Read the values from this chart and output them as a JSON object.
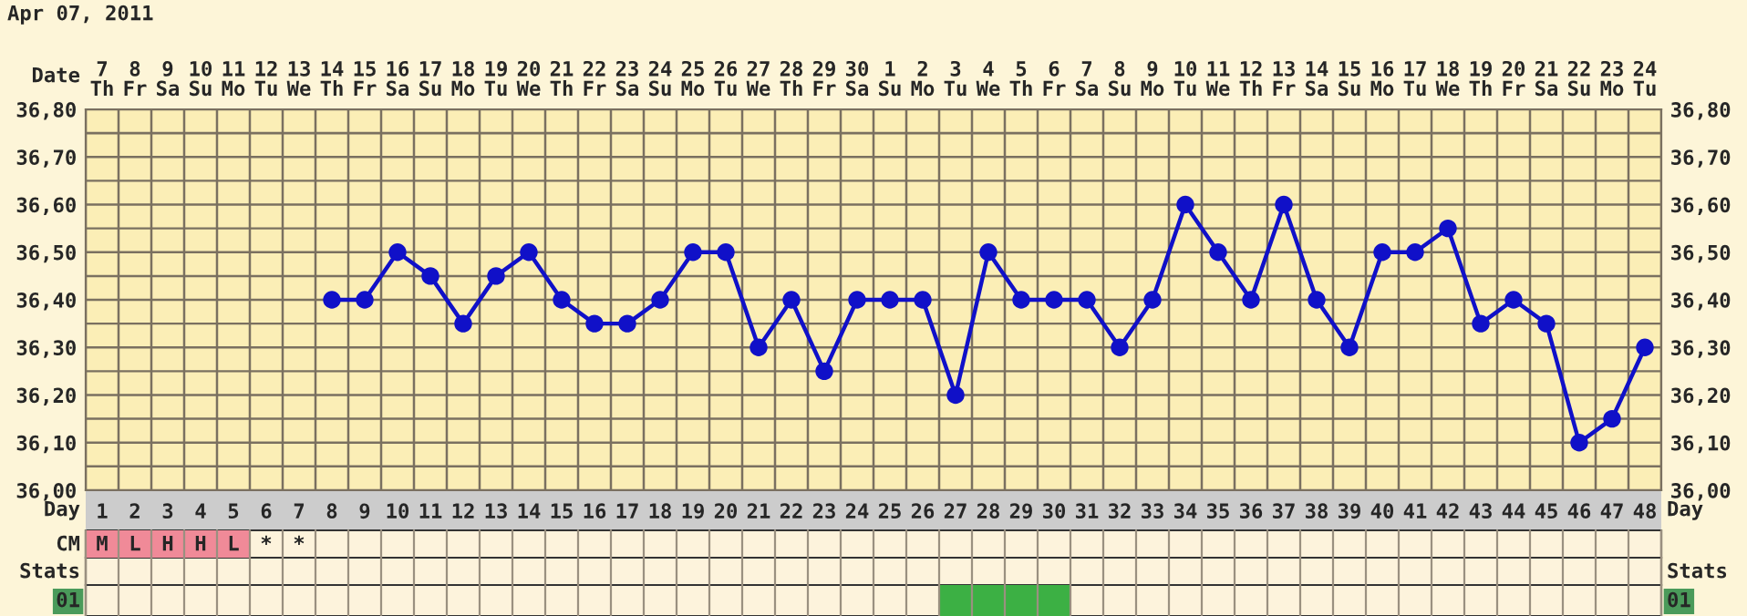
{
  "chart_data": {
    "type": "line",
    "title": "Apr 07, 2011",
    "xlabel": "Day",
    "categories": [
      "1",
      "2",
      "3",
      "4",
      "5",
      "6",
      "7",
      "8",
      "9",
      "10",
      "11",
      "12",
      "13",
      "14",
      "15",
      "16",
      "17",
      "18",
      "19",
      "20",
      "21",
      "22",
      "23",
      "24",
      "25",
      "26",
      "27",
      "28",
      "29",
      "30",
      "31",
      "32",
      "33",
      "34",
      "35",
      "36",
      "37",
      "38",
      "39",
      "40",
      "41",
      "42",
      "43",
      "44",
      "45",
      "46",
      "47",
      "48"
    ],
    "series": [
      {
        "color": "#1010c8",
        "values": [
          null,
          null,
          null,
          null,
          null,
          null,
          null,
          36.4,
          36.4,
          36.5,
          36.45,
          36.35,
          36.45,
          36.5,
          36.4,
          36.35,
          36.35,
          36.4,
          36.5,
          36.5,
          36.3,
          36.4,
          36.25,
          36.4,
          36.4,
          36.4,
          36.2,
          36.5,
          36.4,
          36.4,
          36.4,
          36.3,
          36.4,
          36.6,
          36.5,
          36.4,
          36.6,
          36.4,
          36.3,
          36.5,
          36.5,
          36.55,
          36.35,
          36.4,
          36.35,
          36.1,
          36.15,
          36.3
        ]
      }
    ],
    "ylim": [
      36.0,
      36.8
    ],
    "yticks": [
      {
        "value": 36.0,
        "label": "36,00"
      },
      {
        "value": 36.05,
        "label": null
      },
      {
        "value": 36.1,
        "label": "36,10"
      },
      {
        "value": 36.15,
        "label": null
      },
      {
        "value": 36.2,
        "label": "36,20"
      },
      {
        "value": 36.25,
        "label": null
      },
      {
        "value": 36.3,
        "label": "36,30"
      },
      {
        "value": 36.35,
        "label": null
      },
      {
        "value": 36.4,
        "label": "36,40"
      },
      {
        "value": 36.45,
        "label": null
      },
      {
        "value": 36.5,
        "label": "36,50"
      },
      {
        "value": 36.55,
        "label": null
      },
      {
        "value": 36.6,
        "label": "36,60"
      },
      {
        "value": 36.65,
        "label": null
      },
      {
        "value": 36.7,
        "label": "36,70"
      },
      {
        "value": 36.75,
        "label": null
      },
      {
        "value": 36.8,
        "label": "36,80"
      }
    ],
    "y2lim": [
      36.0,
      36.8
    ],
    "y2ticks": [
      {
        "value": 36.0,
        "label": "36,00"
      },
      {
        "value": 36.1,
        "label": "36,10"
      },
      {
        "value": 36.2,
        "label": "36,20"
      },
      {
        "value": 36.3,
        "label": "36,30"
      },
      {
        "value": 36.4,
        "label": "36,40"
      },
      {
        "value": 36.5,
        "label": "36,50"
      },
      {
        "value": 36.6,
        "label": "36,60"
      },
      {
        "value": 36.7,
        "label": "36,70"
      },
      {
        "value": 36.8,
        "label": "36,80"
      }
    ],
    "grid": true,
    "marker": "circle",
    "line_style": "solid",
    "annotations": [
      "Date",
      "7\nTh",
      "8\nFr",
      "9\nSa",
      "10\nSu",
      "11\nMo",
      "12\nTu",
      "13\nWe",
      "14\nTh",
      "15\nFr",
      "16\nSa",
      "17\nSu",
      "18\nMo",
      "19\nTu",
      "20\nWe",
      "21\nTh",
      "22\nFr",
      "23\nSa",
      "24\nSu",
      "25\nMo",
      "26\nTu",
      "27\nWe",
      "28\nTh",
      "29\nFr",
      "30\nSa",
      "1\nSu",
      "2\nMo",
      "3\nTu",
      "4\nWe",
      "5\nTh",
      "6\nFr",
      "7\nSa",
      "8\nSu",
      "9\nMo",
      "10\nTu",
      "11\nWe",
      "12\nTh",
      "13\nFr",
      "14\nSa",
      "15\nSu",
      "16\nMo",
      "17\nTu",
      "18\nWe",
      "19\nTh",
      "20\nFr",
      "21\nSa",
      "22\nSu",
      "23\nMo",
      "24\nTu",
      "CM",
      "M",
      "L",
      "H",
      "H",
      "L",
      "*",
      "*",
      "Stats",
      "Stats",
      "01",
      "01"
    ]
  }
}
